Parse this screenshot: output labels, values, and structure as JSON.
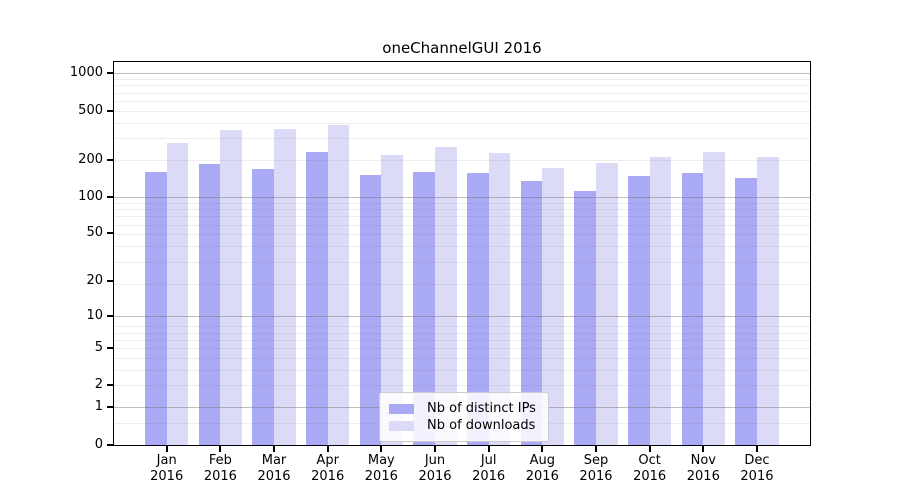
{
  "chart_data": {
    "type": "bar",
    "title": "oneChannelGUI 2016",
    "categories": [
      "Jan",
      "Feb",
      "Mar",
      "Apr",
      "May",
      "Jun",
      "Jul",
      "Aug",
      "Sep",
      "Oct",
      "Nov",
      "Dec"
    ],
    "category_year": "2016",
    "series": [
      {
        "name": "Nb of distinct IPs",
        "color": "#a9a9f4",
        "values": [
          160,
          183,
          167,
          229,
          150,
          158,
          155,
          133,
          112,
          147,
          155,
          142
        ]
      },
      {
        "name": "Nb of downloads",
        "color": "#dbdbf8",
        "values": [
          274,
          347,
          356,
          383,
          218,
          253,
          227,
          170,
          189,
          208,
          230,
          211
        ]
      }
    ],
    "y_scale": "log10(value+1)",
    "y_ticks": [
      1000,
      500,
      200,
      100,
      50,
      20,
      10,
      5,
      2,
      1,
      0
    ],
    "y_major_gridlines": [
      1,
      10,
      100,
      1000
    ],
    "y_minor_gridlines": [
      0.5,
      2,
      3,
      4,
      5,
      6,
      7,
      8,
      19,
      29,
      39,
      49,
      59,
      69,
      79,
      89,
      199,
      299,
      399,
      499,
      599,
      699,
      799,
      899
    ],
    "ylim": [
      0,
      1250
    ],
    "grid": true,
    "legend_position": "bottom-center",
    "axis_color": "#000000",
    "background_color": "#ffffff"
  }
}
